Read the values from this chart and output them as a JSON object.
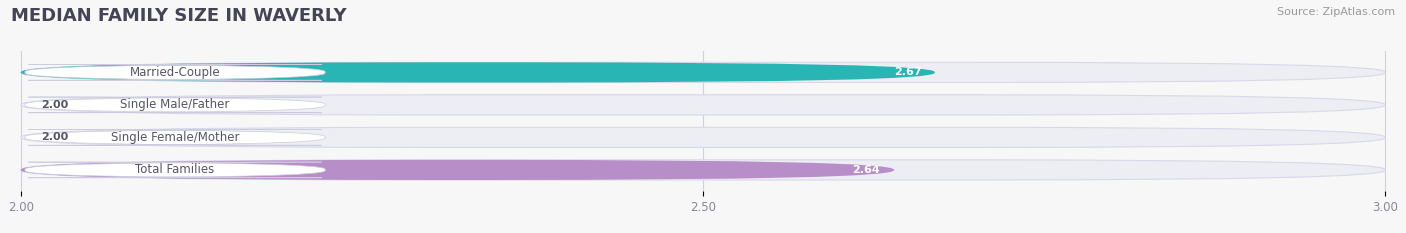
{
  "title": "MEDIAN FAMILY SIZE IN WAVERLY",
  "source": "Source: ZipAtlas.com",
  "categories": [
    "Married-Couple",
    "Single Male/Father",
    "Single Female/Mother",
    "Total Families"
  ],
  "values": [
    2.67,
    2.0,
    2.0,
    2.64
  ],
  "bar_colors": [
    "#2ab5b5",
    "#a8bce8",
    "#f4a8be",
    "#b88ec8"
  ],
  "track_color": "#ededf4",
  "track_border_color": "#d8d8e8",
  "xlim_min": 2.0,
  "xlim_max": 3.0,
  "xticks": [
    2.0,
    2.5,
    3.0
  ],
  "xtick_labels": [
    "2.00",
    "2.50",
    "3.00"
  ],
  "bar_height": 0.62,
  "label_fontsize": 8.5,
  "value_fontsize": 8,
  "title_fontsize": 13,
  "source_fontsize": 8,
  "figsize": [
    14.06,
    2.33
  ],
  "dpi": 100,
  "background_color": "#f7f7f7",
  "label_bg_color": "#ffffff",
  "label_text_color": "#555566",
  "grid_color": "#d0d0de",
  "tick_color": "#888899"
}
